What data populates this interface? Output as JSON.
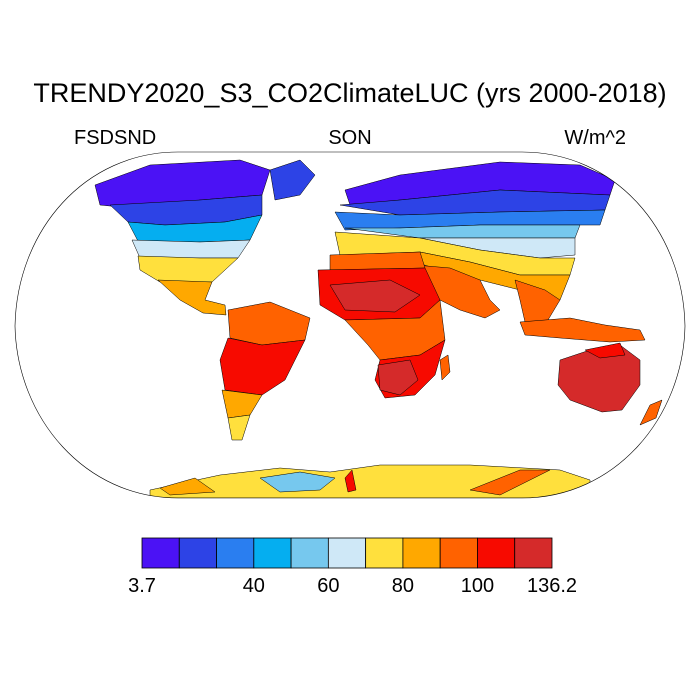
{
  "title": "TRENDY2020_S3_CO2ClimateLUC (yrs 2000-2018)",
  "left_label": "FSDSND",
  "center_label": "SON",
  "right_label": "W/m^2",
  "colorbar": {
    "colors": [
      "#4b12f5",
      "#2d43e6",
      "#2a7ef0",
      "#05aef0",
      "#76c8ee",
      "#cfe8f7",
      "#ffe03d",
      "#ffa800",
      "#ff6200",
      "#f70a00",
      "#d52a2a"
    ],
    "labels": [
      {
        "text": "3.7",
        "index": 0
      },
      {
        "text": "40",
        "index": 3
      },
      {
        "text": "60",
        "index": 5
      },
      {
        "text": "80",
        "index": 7
      },
      {
        "text": "100",
        "index": 9
      },
      {
        "text": "136.2",
        "index": 11
      }
    ]
  },
  "map_regions": [
    {
      "name": "north-america-arctic",
      "color": "#4b12f5"
    },
    {
      "name": "north-america-high",
      "color": "#2d43e6"
    },
    {
      "name": "north-america-mid",
      "color": "#05aef0"
    },
    {
      "name": "north-america-temperate",
      "color": "#cfe8f7"
    },
    {
      "name": "north-america-south",
      "color": "#ffe03d"
    },
    {
      "name": "central-america",
      "color": "#ffa800"
    },
    {
      "name": "greenland-edge",
      "color": "#2d43e6"
    },
    {
      "name": "south-america-north",
      "color": "#ff6200"
    },
    {
      "name": "south-america-central",
      "color": "#f70a00"
    },
    {
      "name": "south-america-south",
      "color": "#ffa800"
    },
    {
      "name": "patagonia",
      "color": "#ffe03d"
    },
    {
      "name": "eurasia-arctic",
      "color": "#4b12f5"
    },
    {
      "name": "eurasia-high",
      "color": "#2d43e6"
    },
    {
      "name": "eurasia-mid",
      "color": "#2a7ef0"
    },
    {
      "name": "eurasia-steppe",
      "color": "#76c8ee"
    },
    {
      "name": "eurasia-temperate",
      "color": "#cfe8f7"
    },
    {
      "name": "mediterranean-china",
      "color": "#ffe03d"
    },
    {
      "name": "india-arabia-north",
      "color": "#ffa800"
    },
    {
      "name": "arabia-india",
      "color": "#ff6200"
    },
    {
      "name": "southeast-asia",
      "color": "#ff6200"
    },
    {
      "name": "indonesia",
      "color": "#ff6200"
    },
    {
      "name": "africa-north",
      "color": "#ff6200"
    },
    {
      "name": "africa-sahara",
      "color": "#f70a00"
    },
    {
      "name": "africa-sahara-core",
      "color": "#d52a2a"
    },
    {
      "name": "africa-central",
      "color": "#ff6200"
    },
    {
      "name": "africa-south",
      "color": "#f70a00"
    },
    {
      "name": "africa-kalahari",
      "color": "#d52a2a"
    },
    {
      "name": "madagascar",
      "color": "#ff6200"
    },
    {
      "name": "australia",
      "color": "#d52a2a"
    },
    {
      "name": "australia-north",
      "color": "#f70a00"
    },
    {
      "name": "new-zealand",
      "color": "#ff6200"
    },
    {
      "name": "antarctica-base",
      "color": "#ffe03d"
    },
    {
      "name": "antarctica-west",
      "color": "#76c8ee"
    },
    {
      "name": "antarctica-orange-1",
      "color": "#ffa800"
    },
    {
      "name": "antarctica-orange-2",
      "color": "#ff6200"
    },
    {
      "name": "antarctica-red",
      "color": "#f70a00"
    }
  ]
}
